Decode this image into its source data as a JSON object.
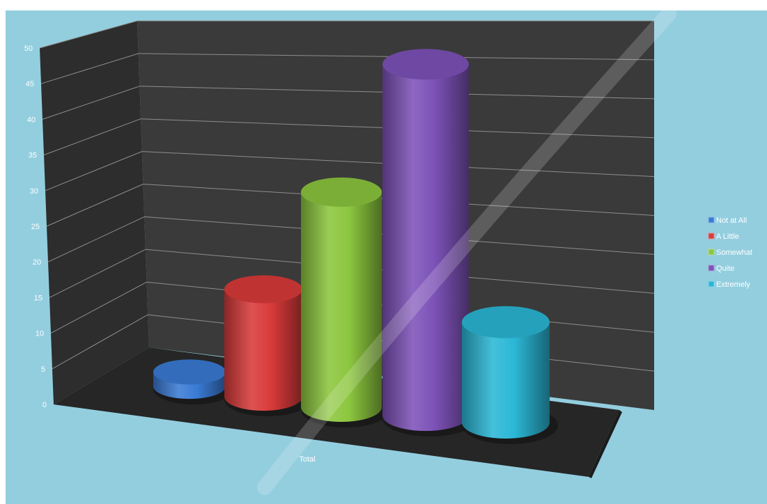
{
  "chart_data": {
    "type": "bar",
    "style": "3d-cylinder",
    "categories": [
      "Total"
    ],
    "series": [
      {
        "name": "Not at All",
        "values": [
          2
        ],
        "color": "#3a7bd5"
      },
      {
        "name": "A Little",
        "values": [
          15
        ],
        "color": "#d93a3a"
      },
      {
        "name": "Somewhat",
        "values": [
          30
        ],
        "color": "#8cc63e"
      },
      {
        "name": "Quite",
        "values": [
          49
        ],
        "color": "#7d52b8"
      },
      {
        "name": "Extremely",
        "values": [
          14
        ],
        "color": "#2bb7d6"
      }
    ],
    "y_ticks": [
      "0",
      "5",
      "10",
      "15",
      "20",
      "25",
      "30",
      "35",
      "40",
      "45",
      "50"
    ],
    "ylim": [
      0,
      50
    ],
    "grid": true,
    "legend_position": "right",
    "colors": {
      "background": "#93cedf",
      "back_wall": "#3a3a3a",
      "side_wall": "#2c2c2c",
      "floor": "#262626",
      "gridline": "#8e8e8e"
    }
  }
}
